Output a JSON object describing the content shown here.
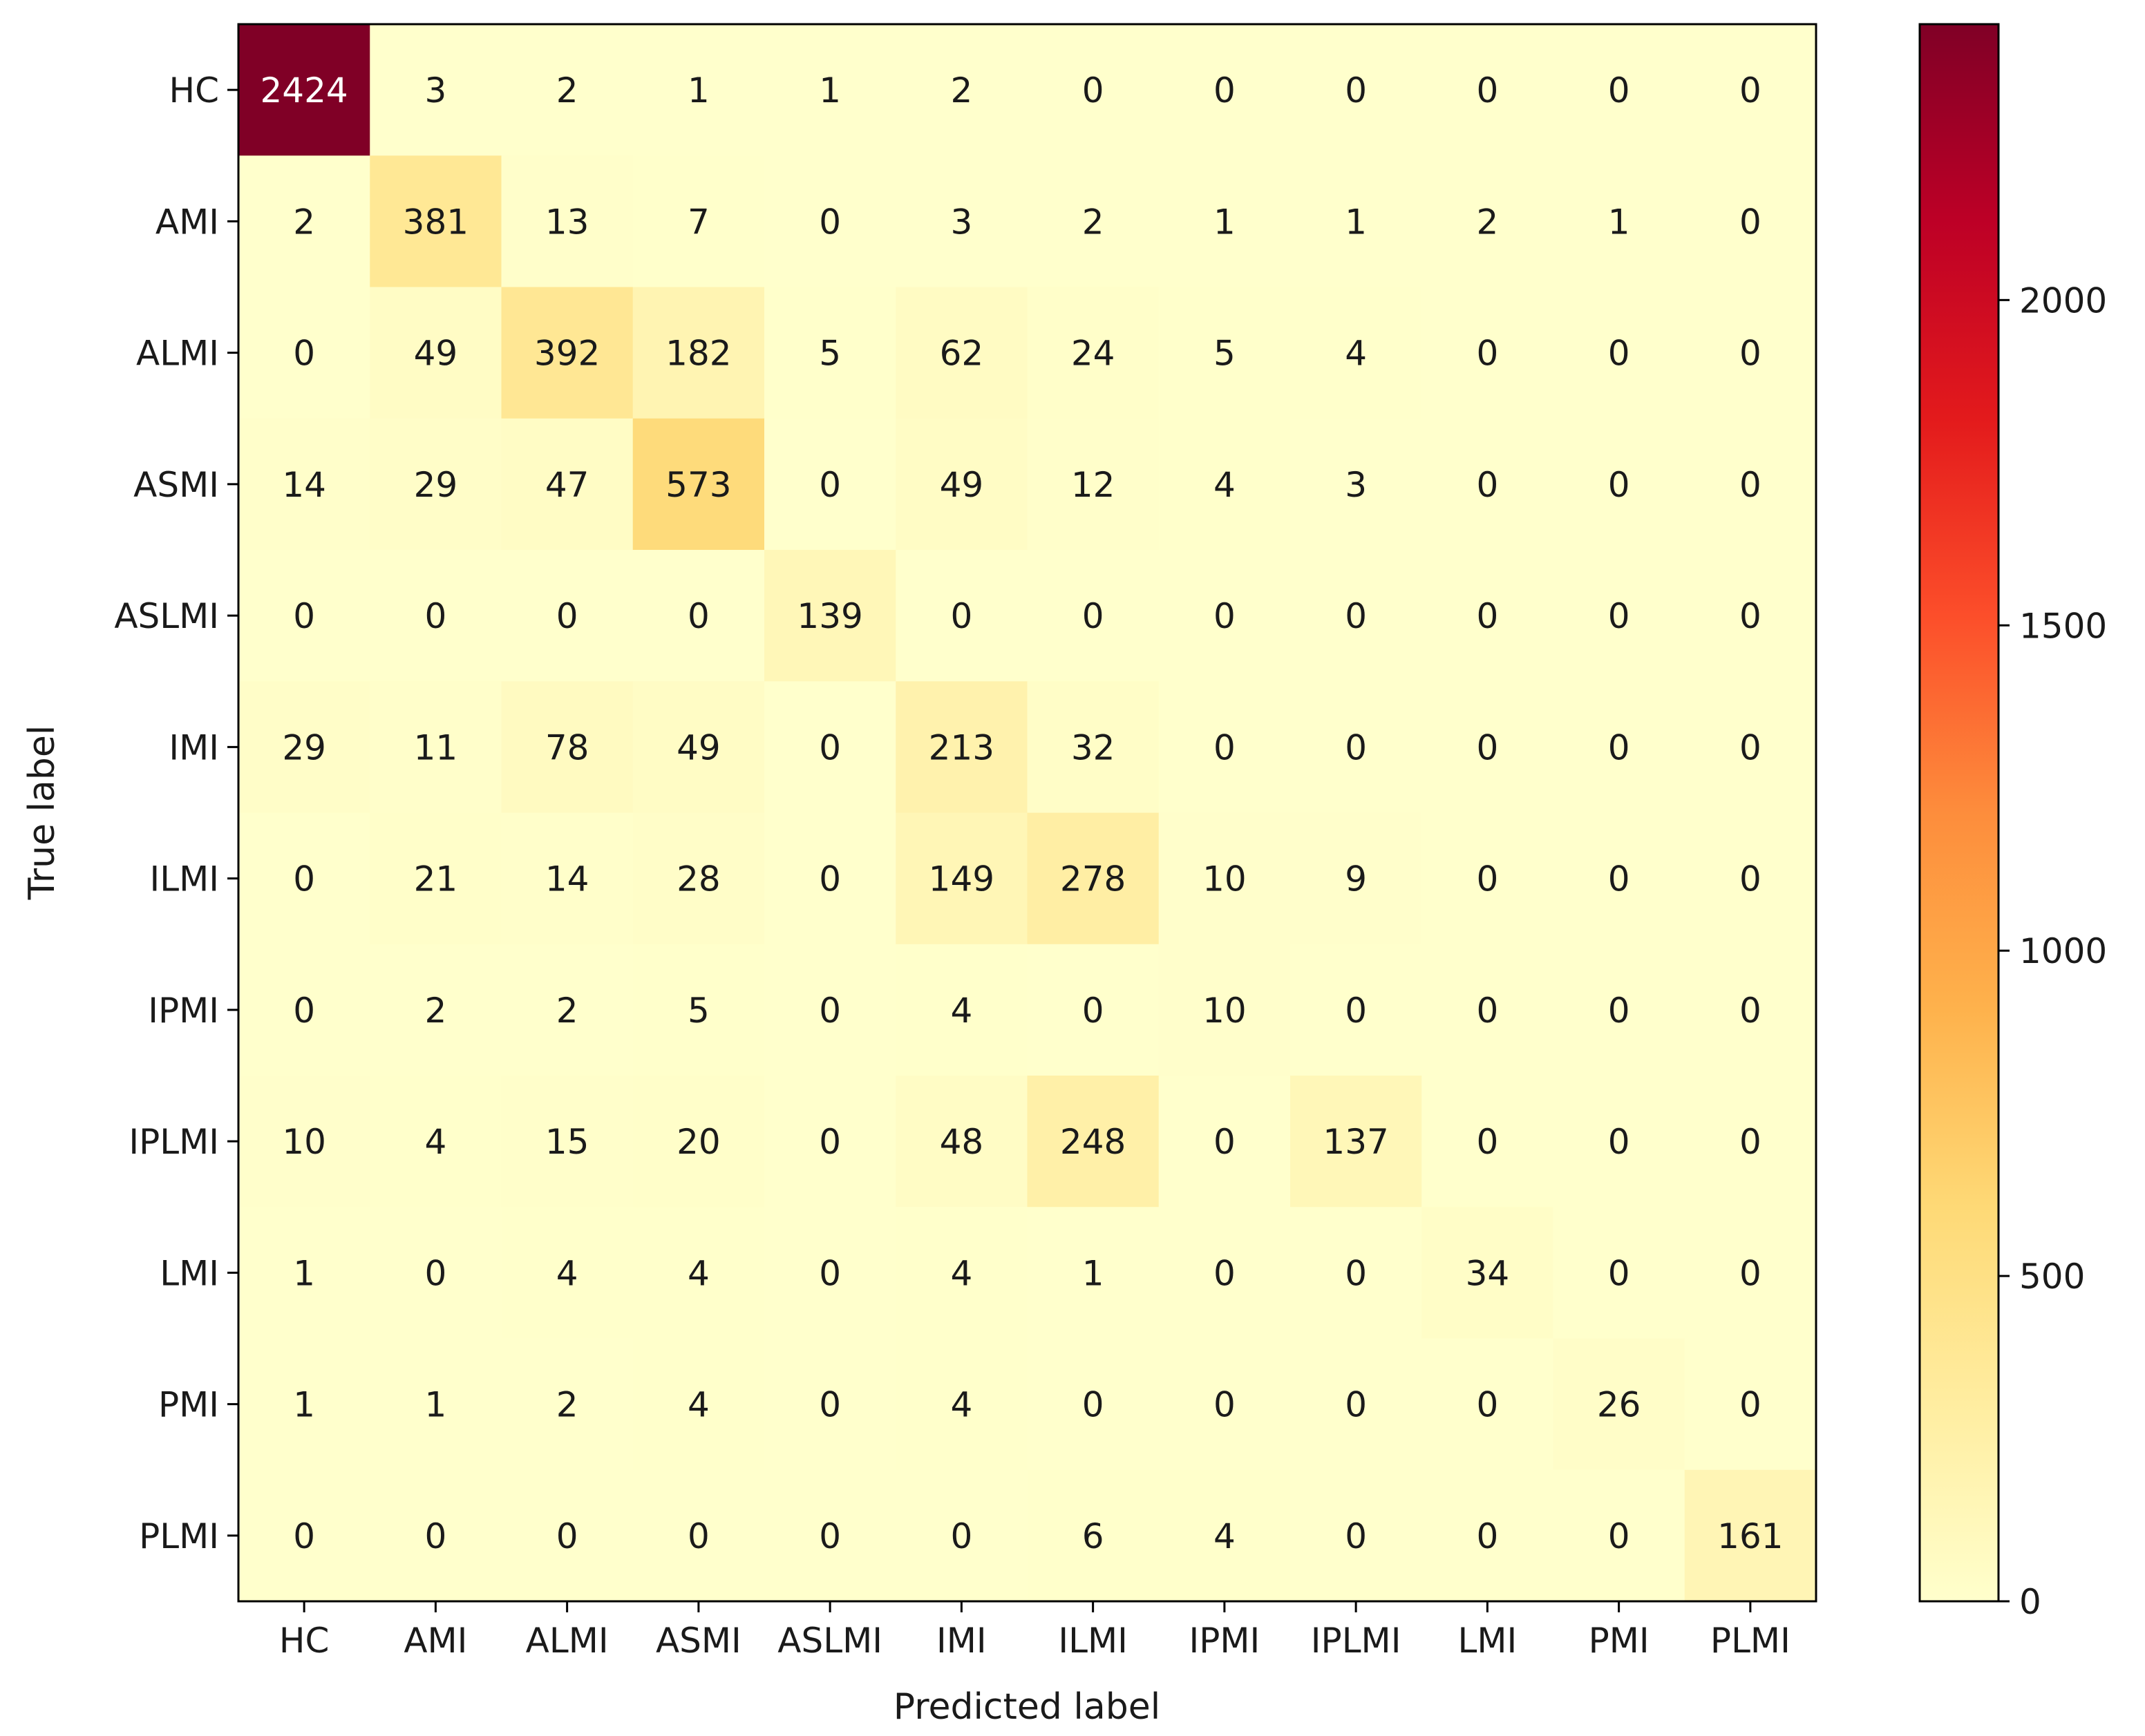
{
  "chart_data": {
    "type": "heatmap",
    "title": "",
    "xlabel": "Predicted label",
    "ylabel": "True label",
    "x_categories": [
      "HC",
      "AMI",
      "ALMI",
      "ASMI",
      "ASLMI",
      "IMI",
      "ILMI",
      "IPMI",
      "IPLMI",
      "LMI",
      "PMI",
      "PLMI"
    ],
    "y_categories": [
      "HC",
      "AMI",
      "ALMI",
      "ASMI",
      "ASLMI",
      "IMI",
      "ILMI",
      "IPMI",
      "IPLMI",
      "LMI",
      "PMI",
      "PLMI"
    ],
    "values": [
      [
        2424,
        3,
        2,
        1,
        1,
        2,
        0,
        0,
        0,
        0,
        0,
        0
      ],
      [
        2,
        381,
        13,
        7,
        0,
        3,
        2,
        1,
        1,
        2,
        1,
        0
      ],
      [
        0,
        49,
        392,
        182,
        5,
        62,
        24,
        5,
        4,
        0,
        0,
        0
      ],
      [
        14,
        29,
        47,
        573,
        0,
        49,
        12,
        4,
        3,
        0,
        0,
        0
      ],
      [
        0,
        0,
        0,
        0,
        139,
        0,
        0,
        0,
        0,
        0,
        0,
        0
      ],
      [
        29,
        11,
        78,
        49,
        0,
        213,
        32,
        0,
        0,
        0,
        0,
        0
      ],
      [
        0,
        21,
        14,
        28,
        0,
        149,
        278,
        10,
        9,
        0,
        0,
        0
      ],
      [
        0,
        2,
        2,
        5,
        0,
        4,
        0,
        10,
        0,
        0,
        0,
        0
      ],
      [
        10,
        4,
        15,
        20,
        0,
        48,
        248,
        0,
        137,
        0,
        0,
        0
      ],
      [
        1,
        0,
        4,
        4,
        0,
        4,
        1,
        0,
        0,
        34,
        0,
        0
      ],
      [
        1,
        1,
        2,
        4,
        0,
        4,
        0,
        0,
        0,
        0,
        26,
        0
      ],
      [
        0,
        0,
        0,
        0,
        0,
        0,
        6,
        4,
        0,
        0,
        0,
        161
      ]
    ],
    "colormap": "YlOrRd",
    "vmin": 0,
    "vmax": 2424,
    "colorbar": {
      "ticks": [
        0,
        500,
        1000,
        1500,
        2000
      ],
      "tick_labels": [
        "0",
        "500",
        "1000",
        "1500",
        "2000"
      ]
    },
    "grid": false,
    "legend": "colorbar-right"
  }
}
